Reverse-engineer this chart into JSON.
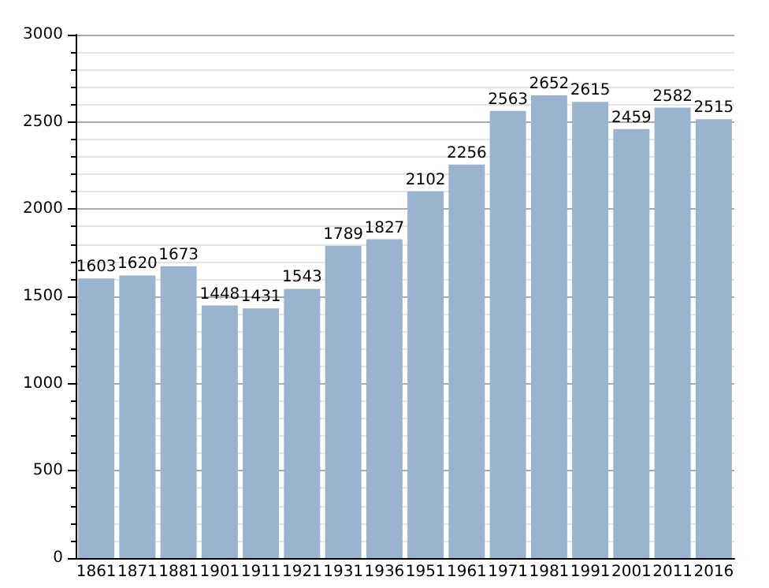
{
  "chart_data": {
    "type": "bar",
    "categories": [
      "1861",
      "1871",
      "1881",
      "1901",
      "1911",
      "1921",
      "1931",
      "1936",
      "1951",
      "1961",
      "1971",
      "1981",
      "1991",
      "2001",
      "2011",
      "2016"
    ],
    "values": [
      1603,
      1620,
      1673,
      1448,
      1431,
      1543,
      1789,
      1827,
      2102,
      2256,
      2563,
      2652,
      2615,
      2459,
      2582,
      2515
    ],
    "color": "#9ab3cf",
    "ylim": [
      0,
      3000
    ],
    "yticks": [
      0,
      500,
      1000,
      1500,
      2000,
      2500,
      3000
    ],
    "grid": true,
    "data_labels": true
  }
}
